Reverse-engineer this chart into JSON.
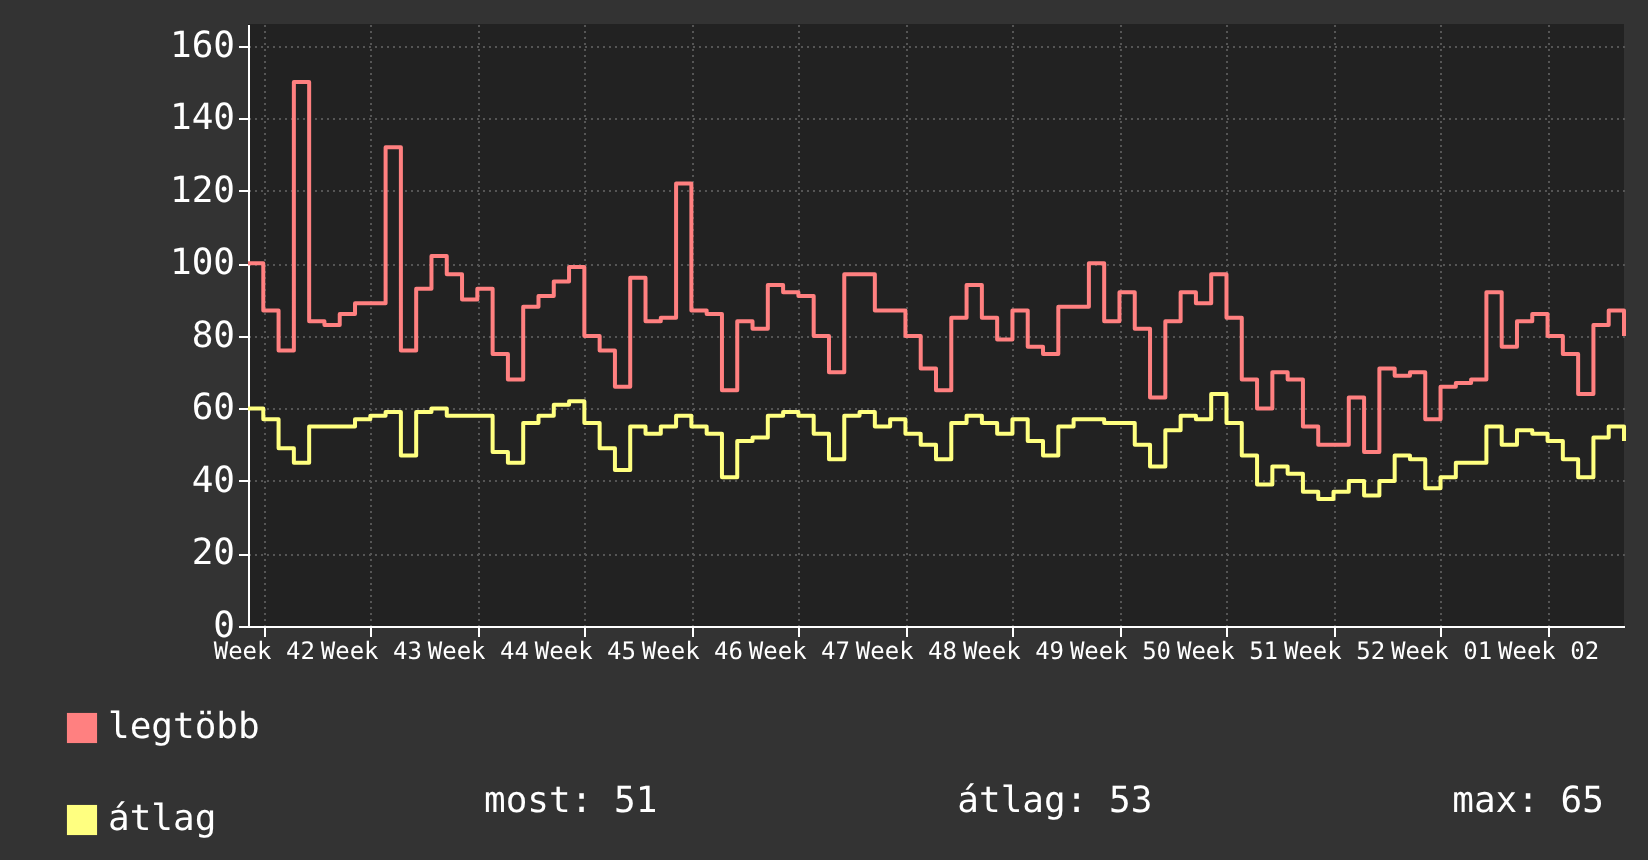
{
  "chart_data": {
    "type": "step",
    "categories": [
      null,
      "Week 42",
      null,
      null,
      null,
      null,
      null,
      null,
      "Week 43",
      null,
      null,
      null,
      null,
      null,
      null,
      "Week 44",
      null,
      null,
      null,
      null,
      null,
      null,
      "Week 45",
      null,
      null,
      null,
      null,
      null,
      null,
      "Week 46",
      null,
      null,
      null,
      null,
      null,
      null,
      "Week 47",
      null,
      null,
      null,
      null,
      null,
      null,
      "Week 48",
      null,
      null,
      null,
      null,
      null,
      null,
      "Week 49",
      null,
      null,
      null,
      null,
      null,
      null,
      "Week 50",
      null,
      null,
      null,
      null,
      null,
      null,
      "Week 51",
      null,
      null,
      null,
      null,
      null,
      null,
      "Week 52",
      null,
      null,
      null,
      null,
      null,
      null,
      "Week 01",
      null,
      null,
      null,
      null,
      null,
      null,
      "Week 02",
      null,
      null,
      null,
      null,
      null
    ],
    "series": [
      {
        "name": "legtöbb",
        "color": "#ff8080",
        "values": [
          100,
          87,
          76,
          150,
          84,
          83,
          86,
          89,
          89,
          132,
          76,
          93,
          102,
          97,
          90,
          93,
          75,
          68,
          88,
          91,
          95,
          99,
          80,
          76,
          66,
          96,
          84,
          85,
          122,
          87,
          86,
          65,
          84,
          82,
          94,
          92,
          91,
          80,
          70,
          97,
          97,
          87,
          87,
          80,
          71,
          65,
          85,
          94,
          85,
          79,
          87,
          77,
          75,
          88,
          88,
          100,
          84,
          92,
          82,
          63,
          84,
          92,
          89,
          97,
          85,
          68,
          60,
          70,
          68,
          55,
          50,
          50,
          63,
          48,
          71,
          69,
          70,
          57,
          66,
          67,
          68,
          92,
          77,
          84,
          86,
          80,
          75,
          64,
          83,
          87,
          80
        ]
      },
      {
        "name": "átlag",
        "color": "#ffff80",
        "values": [
          60,
          57,
          49,
          45,
          55,
          55,
          55,
          57,
          58,
          59,
          47,
          59,
          60,
          58,
          58,
          58,
          48,
          45,
          56,
          58,
          61,
          62,
          56,
          49,
          43,
          55,
          53,
          55,
          58,
          55,
          53,
          41,
          51,
          52,
          58,
          59,
          58,
          53,
          46,
          58,
          59,
          55,
          57,
          53,
          50,
          46,
          56,
          58,
          56,
          53,
          57,
          51,
          47,
          55,
          57,
          57,
          56,
          56,
          50,
          44,
          54,
          58,
          57,
          64,
          56,
          47,
          39,
          44,
          42,
          37,
          35,
          37,
          40,
          36,
          40,
          47,
          46,
          38,
          41,
          45,
          45,
          55,
          50,
          54,
          53,
          51,
          46,
          41,
          52,
          55,
          51
        ]
      }
    ],
    "ylim": [
      0,
      166
    ],
    "yticks": [
      0,
      20,
      40,
      60,
      80,
      100,
      120,
      140,
      160
    ],
    "grid": true,
    "legend": "bottom",
    "line_style": "solid",
    "annotations": [
      "most: 51",
      "átlag: 53",
      "max: 65"
    ]
  }
}
